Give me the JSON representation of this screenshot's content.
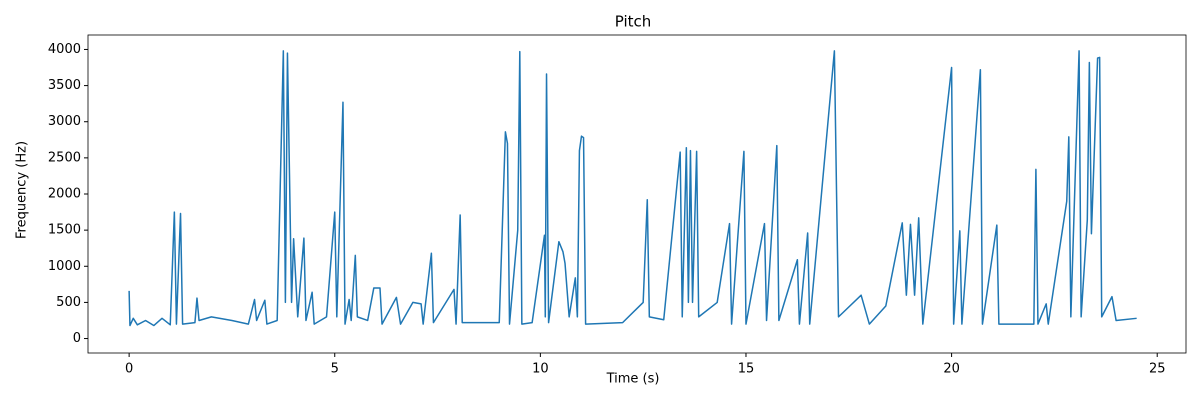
{
  "chart_data": {
    "type": "line",
    "title": "Pitch",
    "x_label": "Time (s)",
    "y_label": "Frequency (Hz)",
    "x": [
      0,
      0.02,
      0.1,
      0.2,
      0.4,
      0.6,
      0.8,
      1.0,
      1.1,
      1.15,
      1.25,
      1.3,
      1.6,
      1.65,
      1.7,
      2.0,
      2.5,
      2.9,
      3.05,
      3.1,
      3.3,
      3.35,
      3.6,
      3.75,
      3.8,
      3.85,
      3.9,
      3.95,
      4.0,
      4.1,
      4.25,
      4.3,
      4.45,
      4.5,
      4.8,
      5.0,
      5.05,
      5.2,
      5.25,
      5.35,
      5.4,
      5.5,
      5.55,
      5.8,
      5.95,
      6.1,
      6.15,
      6.5,
      6.6,
      6.9,
      7.1,
      7.15,
      7.35,
      7.4,
      7.9,
      7.95,
      8.05,
      8.1,
      9.0,
      9.15,
      9.2,
      9.25,
      9.45,
      9.5,
      9.55,
      9.8,
      10.1,
      10.12,
      10.15,
      10.2,
      10.45,
      10.55,
      10.6,
      10.7,
      10.85,
      10.9,
      10.95,
      11.0,
      11.05,
      11.1,
      12.0,
      12.5,
      12.6,
      12.65,
      13.0,
      13.4,
      13.45,
      13.55,
      13.6,
      13.65,
      13.7,
      13.8,
      13.85,
      14.3,
      14.6,
      14.65,
      14.95,
      15.0,
      15.45,
      15.5,
      15.75,
      15.8,
      16.25,
      16.3,
      16.5,
      16.55,
      17.15,
      17.2,
      17.25,
      17.8,
      18.0,
      18.4,
      18.8,
      18.9,
      19.0,
      19.1,
      19.2,
      19.3,
      20.0,
      20.05,
      20.2,
      20.25,
      20.7,
      20.75,
      21.1,
      21.15,
      22.0,
      22.05,
      22.1,
      22.3,
      22.35,
      22.8,
      22.85,
      22.9,
      23.1,
      23.15,
      23.3,
      23.35,
      23.4,
      23.55,
      23.6,
      23.65,
      23.9,
      24.0,
      24.5
    ],
    "series": [
      {
        "name": "Pitch",
        "color": "#1f77b4",
        "values": [
          660,
          180,
          280,
          190,
          250,
          180,
          280,
          190,
          1750,
          200,
          1730,
          200,
          220,
          560,
          250,
          300,
          250,
          200,
          540,
          250,
          530,
          200,
          250,
          3980,
          500,
          3950,
          2250,
          500,
          1380,
          300,
          1390,
          250,
          640,
          200,
          300,
          1750,
          300,
          3270,
          200,
          540,
          250,
          1150,
          300,
          250,
          700,
          700,
          200,
          570,
          200,
          500,
          480,
          200,
          1180,
          220,
          680,
          200,
          1710,
          220,
          220,
          2860,
          2700,
          200,
          1500,
          3970,
          200,
          220,
          1430,
          300,
          3660,
          220,
          1340,
          1200,
          1040,
          300,
          840,
          300,
          2600,
          2800,
          2780,
          200,
          220,
          500,
          1920,
          300,
          260,
          2580,
          300,
          2640,
          500,
          2600,
          500,
          2590,
          300,
          500,
          1590,
          200,
          2590,
          200,
          1590,
          250,
          2670,
          250,
          1090,
          200,
          1460,
          200,
          3980,
          2100,
          300,
          600,
          200,
          450,
          1600,
          600,
          1580,
          600,
          1670,
          200,
          3750,
          200,
          1490,
          200,
          3720,
          200,
          1570,
          200,
          200,
          2340,
          200,
          480,
          200,
          1900,
          2790,
          300,
          3980,
          300,
          1640,
          3820,
          1450,
          3880,
          3890,
          300,
          580,
          250,
          280
        ]
      }
    ],
    "xlim": [
      -1,
      25.7
    ],
    "ylim": [
      -200,
      4200
    ],
    "xticks": [
      0,
      5,
      10,
      15,
      20,
      25
    ],
    "yticks": [
      0,
      500,
      1000,
      1500,
      2000,
      2500,
      3000,
      3500,
      4000
    ],
    "grid": false
  }
}
